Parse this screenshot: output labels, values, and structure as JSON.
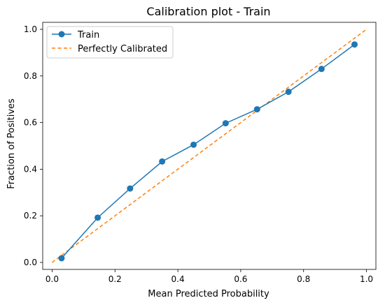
{
  "chart_data": {
    "type": "line",
    "title": "Calibration plot - Train",
    "xlabel": "Mean Predicted Probability",
    "ylabel": "Fraction of Positives",
    "xlim": [
      -0.03,
      1.03
    ],
    "ylim": [
      -0.03,
      1.03
    ],
    "xticks": [
      0.0,
      0.2,
      0.4,
      0.6,
      0.8,
      1.0
    ],
    "yticks": [
      0.0,
      0.2,
      0.4,
      0.6,
      0.8,
      1.0
    ],
    "xtick_labels": [
      "0.0",
      "0.2",
      "0.4",
      "0.6",
      "0.8",
      "1.0"
    ],
    "ytick_labels": [
      "0.0",
      "0.2",
      "0.4",
      "0.6",
      "0.8",
      "1.0"
    ],
    "grid": false,
    "legend_position": "upper left",
    "series": [
      {
        "name": "Train",
        "style": "solid-with-markers",
        "color": "#1f77b4",
        "x": [
          0.03,
          0.145,
          0.248,
          0.35,
          0.45,
          0.552,
          0.652,
          0.752,
          0.857,
          0.962
        ],
        "y": [
          0.018,
          0.192,
          0.317,
          0.433,
          0.505,
          0.597,
          0.657,
          0.732,
          0.83,
          0.935
        ]
      },
      {
        "name": "Perfectly Calibrated",
        "style": "dashed",
        "color": "#ff7f0e",
        "x": [
          0.0,
          1.0
        ],
        "y": [
          0.0,
          1.0
        ]
      }
    ]
  }
}
